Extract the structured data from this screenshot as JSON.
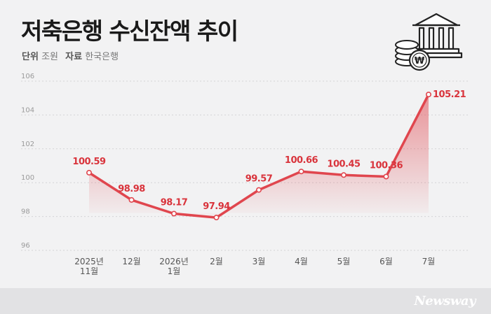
{
  "title": "저축은행 수신잔액 추이",
  "unit_label": "단위",
  "unit_value": "조원",
  "source_label": "자료",
  "source_value": "한국은행",
  "brand": "Newsway",
  "icons": [
    "bank-icon",
    "won-coin-icon",
    "coin-stack-icon"
  ],
  "colors": {
    "line": "#e0464e",
    "label": "#d9343c",
    "background": "#f2f2f3",
    "footer": "#e2e2e4"
  },
  "chart_data": {
    "type": "area",
    "categories": [
      "2025년\n11월",
      "12월",
      "2026년\n1월",
      "2월",
      "3월",
      "4월",
      "5월",
      "6월",
      "7월"
    ],
    "values": [
      100.59,
      98.98,
      98.17,
      97.94,
      99.57,
      100.66,
      100.45,
      100.36,
      105.21
    ],
    "data_labels": [
      "100.59",
      "98.98",
      "98.17",
      "97.94",
      "99.57",
      "100.66",
      "100.45",
      "100.36",
      "105.21"
    ],
    "ylim": [
      96,
      106
    ],
    "yticks": [
      "96",
      "98",
      "100",
      "102",
      "104",
      "106"
    ],
    "grid": true,
    "legend": "none"
  }
}
